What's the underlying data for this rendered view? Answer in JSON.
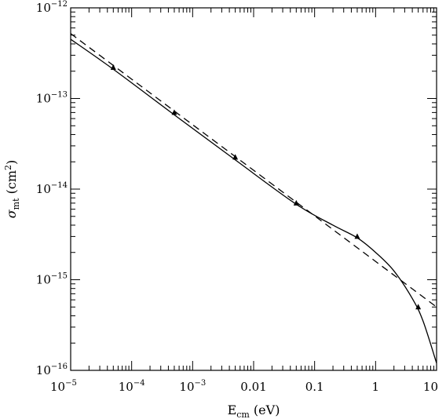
{
  "chart_data": {
    "type": "line",
    "x_scale": "log",
    "y_scale": "log",
    "xlim": [
      1e-05,
      10
    ],
    "ylim": [
      1e-16,
      1e-12
    ],
    "x_ticks": [
      {
        "value": 1e-05,
        "label_base": "10",
        "label_exp": "−5"
      },
      {
        "value": 0.0001,
        "label_base": "10",
        "label_exp": "−4"
      },
      {
        "value": 0.001,
        "label_base": "10",
        "label_exp": "−3"
      },
      {
        "value": 0.01,
        "label_base": "0.01",
        "label_exp": ""
      },
      {
        "value": 0.1,
        "label_base": "0.1",
        "label_exp": ""
      },
      {
        "value": 1,
        "label_base": "1",
        "label_exp": ""
      },
      {
        "value": 10,
        "label_base": "10",
        "label_exp": ""
      }
    ],
    "y_ticks": [
      {
        "value": 1e-16,
        "label_base": "10",
        "label_exp": "−16"
      },
      {
        "value": 1e-15,
        "label_base": "10",
        "label_exp": "−15"
      },
      {
        "value": 1e-14,
        "label_base": "10",
        "label_exp": "−14"
      },
      {
        "value": 1e-13,
        "label_base": "10",
        "label_exp": "−13"
      },
      {
        "value": 1e-12,
        "label_base": "10",
        "label_exp": "−12"
      }
    ],
    "xlabel": {
      "main": "E",
      "sub": "cm",
      "suffix": " (eV)"
    },
    "ylabel": {
      "main": "σ",
      "sub": "mt",
      "suffix": " (cm",
      "sup": "2",
      "end": ")"
    },
    "grid": false,
    "series": [
      {
        "style": "solid",
        "x": [
          1e-05,
          5e-05,
          0.0005,
          0.005,
          0.05,
          0.2,
          0.5,
          1,
          2,
          4,
          6,
          10
        ],
        "y": [
          4.5e-13,
          2.1e-13,
          6.6e-14,
          2.1e-14,
          6.8e-15,
          4e-15,
          2.9e-15,
          2e-15,
          1.25e-15,
          6.2e-16,
          3.5e-16,
          1.2e-16
        ]
      },
      {
        "style": "dashed",
        "x": [
          1e-05,
          10
        ],
        "y": [
          5.2e-13,
          5e-16
        ]
      },
      {
        "style": "markers",
        "marker": "triangle",
        "x": [
          5e-05,
          0.0005,
          0.005,
          0.05,
          0.5,
          5
        ],
        "y": [
          2.2e-13,
          7e-14,
          2.25e-14,
          7e-15,
          3e-15,
          5e-16
        ]
      }
    ]
  }
}
